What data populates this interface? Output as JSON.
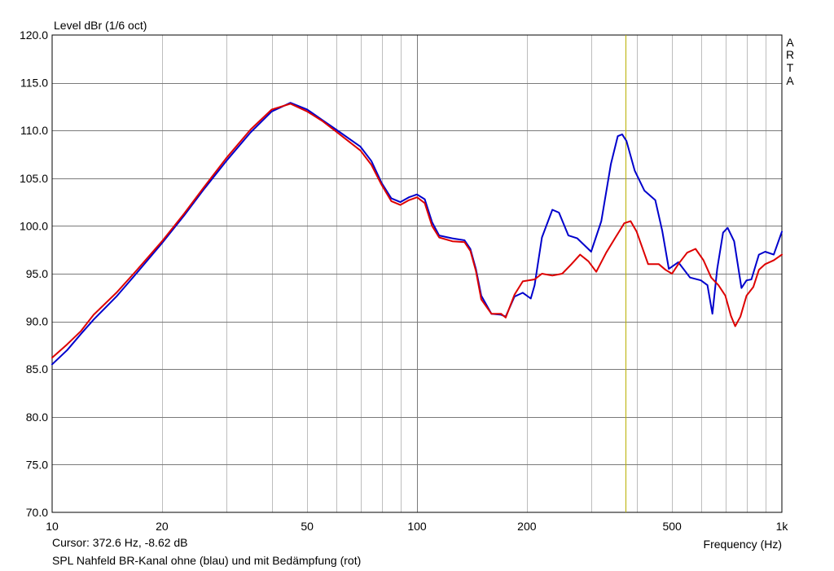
{
  "chart_data": {
    "type": "line",
    "ylabel": "Level dBr (1/6 oct)",
    "xlabel": "Frequency (Hz)",
    "x_scale": "log",
    "xlim": [
      10,
      1000
    ],
    "ylim": [
      70,
      120
    ],
    "y_ticks": [
      {
        "v": 70,
        "label": "70.0"
      },
      {
        "v": 75,
        "label": "75.0"
      },
      {
        "v": 80,
        "label": "80.0"
      },
      {
        "v": 85,
        "label": "85.0"
      },
      {
        "v": 90,
        "label": "90.0"
      },
      {
        "v": 95,
        "label": "95.0"
      },
      {
        "v": 100,
        "label": "100.0"
      },
      {
        "v": 105,
        "label": "105.0"
      },
      {
        "v": 110,
        "label": "110.0"
      },
      {
        "v": 115,
        "label": "115.0"
      },
      {
        "v": 120,
        "label": "120.0"
      }
    ],
    "x_ticks": [
      {
        "v": 10,
        "label": "10"
      },
      {
        "v": 20,
        "label": "20"
      },
      {
        "v": 50,
        "label": "50"
      },
      {
        "v": 100,
        "label": "100"
      },
      {
        "v": 200,
        "label": "200"
      },
      {
        "v": 500,
        "label": "500"
      },
      {
        "v": 1000,
        "label": "1k"
      }
    ],
    "grid": true,
    "cursor": {
      "freq": 372.6,
      "color": "#b8b000"
    },
    "series": [
      {
        "color": "#0000cc",
        "points": [
          [
            10,
            85.5
          ],
          [
            11,
            87
          ],
          [
            12,
            88.7
          ],
          [
            13,
            90.2
          ],
          [
            15,
            92.6
          ],
          [
            17,
            95
          ],
          [
            20,
            98.2
          ],
          [
            23,
            101.1
          ],
          [
            26,
            103.8
          ],
          [
            30,
            106.8
          ],
          [
            35,
            109.8
          ],
          [
            40,
            112
          ],
          [
            45,
            112.9
          ],
          [
            50,
            112.2
          ],
          [
            55,
            111.1
          ],
          [
            60,
            110.1
          ],
          [
            70,
            108.3
          ],
          [
            75,
            106.8
          ],
          [
            80,
            104.5
          ],
          [
            85,
            102.9
          ],
          [
            90,
            102.5
          ],
          [
            95,
            103
          ],
          [
            100,
            103.3
          ],
          [
            105,
            102.8
          ],
          [
            110,
            100.4
          ],
          [
            115,
            99
          ],
          [
            125,
            98.7
          ],
          [
            135,
            98.5
          ],
          [
            140,
            97.6
          ],
          [
            145,
            95.5
          ],
          [
            150,
            92.7
          ],
          [
            160,
            90.8
          ],
          [
            170,
            90.7
          ],
          [
            175,
            90.5
          ],
          [
            185,
            92.6
          ],
          [
            195,
            93
          ],
          [
            205,
            92.4
          ],
          [
            210,
            93.8
          ],
          [
            220,
            98.8
          ],
          [
            235,
            101.7
          ],
          [
            245,
            101.4
          ],
          [
            260,
            99
          ],
          [
            275,
            98.7
          ],
          [
            300,
            97.3
          ],
          [
            320,
            100.5
          ],
          [
            340,
            106.5
          ],
          [
            355,
            109.4
          ],
          [
            365,
            109.6
          ],
          [
            375,
            108.9
          ],
          [
            395,
            105.8
          ],
          [
            420,
            103.7
          ],
          [
            450,
            102.7
          ],
          [
            470,
            99.5
          ],
          [
            490,
            95.5
          ],
          [
            520,
            96.2
          ],
          [
            560,
            94.6
          ],
          [
            600,
            94.3
          ],
          [
            625,
            93.8
          ],
          [
            645,
            90.8
          ],
          [
            665,
            95.5
          ],
          [
            690,
            99.3
          ],
          [
            710,
            99.8
          ],
          [
            740,
            98.4
          ],
          [
            775,
            93.5
          ],
          [
            800,
            94.3
          ],
          [
            825,
            94.4
          ],
          [
            865,
            97
          ],
          [
            900,
            97.3
          ],
          [
            950,
            97
          ],
          [
            1000,
            99.4
          ]
        ]
      },
      {
        "color": "#dd0000",
        "points": [
          [
            10,
            86.2
          ],
          [
            11,
            87.6
          ],
          [
            12,
            89
          ],
          [
            13,
            90.7
          ],
          [
            15,
            93
          ],
          [
            17,
            95.3
          ],
          [
            20,
            98.4
          ],
          [
            23,
            101.3
          ],
          [
            26,
            104
          ],
          [
            30,
            107.1
          ],
          [
            35,
            110.1
          ],
          [
            40,
            112.2
          ],
          [
            45,
            112.8
          ],
          [
            50,
            112
          ],
          [
            55,
            111
          ],
          [
            60,
            109.9
          ],
          [
            70,
            107.9
          ],
          [
            75,
            106.4
          ],
          [
            80,
            104.3
          ],
          [
            85,
            102.6
          ],
          [
            90,
            102.2
          ],
          [
            95,
            102.7
          ],
          [
            100,
            103
          ],
          [
            105,
            102.4
          ],
          [
            110,
            100
          ],
          [
            115,
            98.8
          ],
          [
            125,
            98.4
          ],
          [
            135,
            98.3
          ],
          [
            140,
            97.4
          ],
          [
            145,
            95.3
          ],
          [
            150,
            92.3
          ],
          [
            160,
            90.8
          ],
          [
            170,
            90.8
          ],
          [
            175,
            90.4
          ],
          [
            185,
            92.8
          ],
          [
            195,
            94.2
          ],
          [
            210,
            94.4
          ],
          [
            220,
            95
          ],
          [
            235,
            94.8
          ],
          [
            250,
            95
          ],
          [
            265,
            96
          ],
          [
            280,
            97
          ],
          [
            295,
            96.3
          ],
          [
            310,
            95.2
          ],
          [
            330,
            97.2
          ],
          [
            350,
            98.8
          ],
          [
            370,
            100.3
          ],
          [
            385,
            100.5
          ],
          [
            400,
            99.4
          ],
          [
            430,
            96
          ],
          [
            460,
            96
          ],
          [
            480,
            95.4
          ],
          [
            500,
            95
          ],
          [
            520,
            96
          ],
          [
            550,
            97.2
          ],
          [
            580,
            97.6
          ],
          [
            610,
            96.4
          ],
          [
            640,
            94.6
          ],
          [
            670,
            93.8
          ],
          [
            700,
            92.7
          ],
          [
            725,
            90.6
          ],
          [
            745,
            89.5
          ],
          [
            770,
            90.5
          ],
          [
            800,
            92.7
          ],
          [
            835,
            93.6
          ],
          [
            865,
            95.4
          ],
          [
            900,
            96
          ],
          [
            950,
            96.4
          ],
          [
            1000,
            97
          ]
        ]
      }
    ]
  },
  "footer": {
    "cursor_text": "Cursor: 372.6 Hz, -8.62 dB",
    "description": "SPL Nahfeld BR-Kanal ohne (blau) und mit Bedämpfung (rot)"
  },
  "brand": {
    "letters": [
      "A",
      "R",
      "T",
      "A"
    ]
  }
}
